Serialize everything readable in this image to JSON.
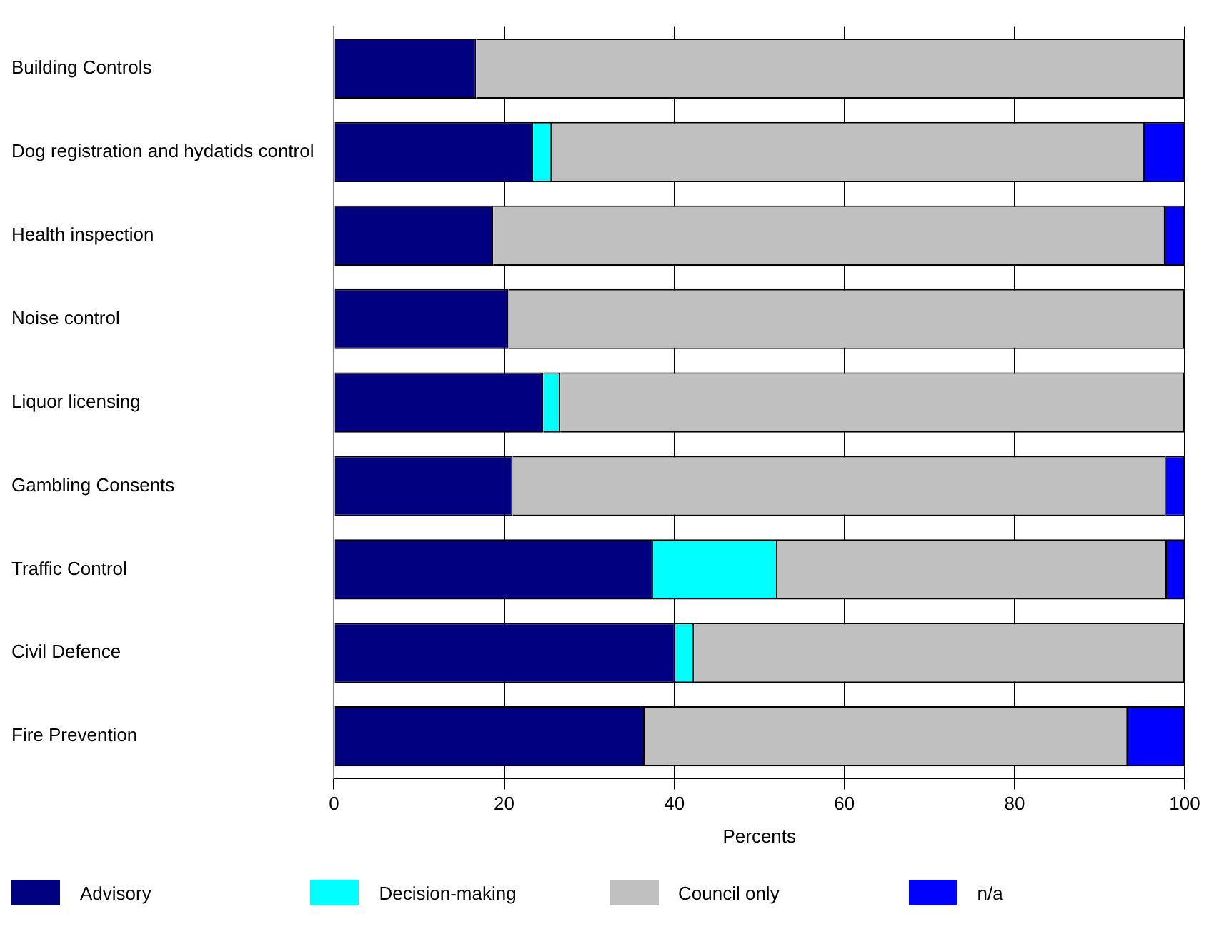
{
  "chart_data": {
    "type": "bar",
    "orientation": "horizontal",
    "stacked": true,
    "categories": [
      "Building Controls",
      "Dog registration and hydatids control",
      "Health inspection",
      "Noise control",
      "Liquor licensing",
      "Gambling Consents",
      "Traffic Control",
      "Civil Defence",
      "Fire Prevention"
    ],
    "series": [
      {
        "name": "Advisory",
        "color": "#000080",
        "values": [
          16.7,
          23.4,
          18.7,
          20.5,
          24.6,
          21.0,
          37.5,
          40.1,
          36.5
        ]
      },
      {
        "name": "Decision-making",
        "color": "#00ffff",
        "values": [
          0,
          2.2,
          0,
          0,
          2.0,
          0,
          14.6,
          2.2,
          0
        ]
      },
      {
        "name": "Council only",
        "color": "#c0c0c0",
        "values": [
          83.3,
          69.7,
          79.0,
          79.5,
          73.4,
          76.8,
          45.8,
          57.7,
          56.8
        ]
      },
      {
        "name": "n/a",
        "color": "#0000ff",
        "values": [
          0,
          4.7,
          2.3,
          0,
          0,
          2.2,
          2.1,
          0,
          6.7
        ]
      }
    ],
    "xlabel": "Percents",
    "xlim": [
      0,
      100
    ],
    "xticks": [
      0,
      20,
      40,
      60,
      80,
      100
    ],
    "grid": "x",
    "legend": "bottom"
  }
}
